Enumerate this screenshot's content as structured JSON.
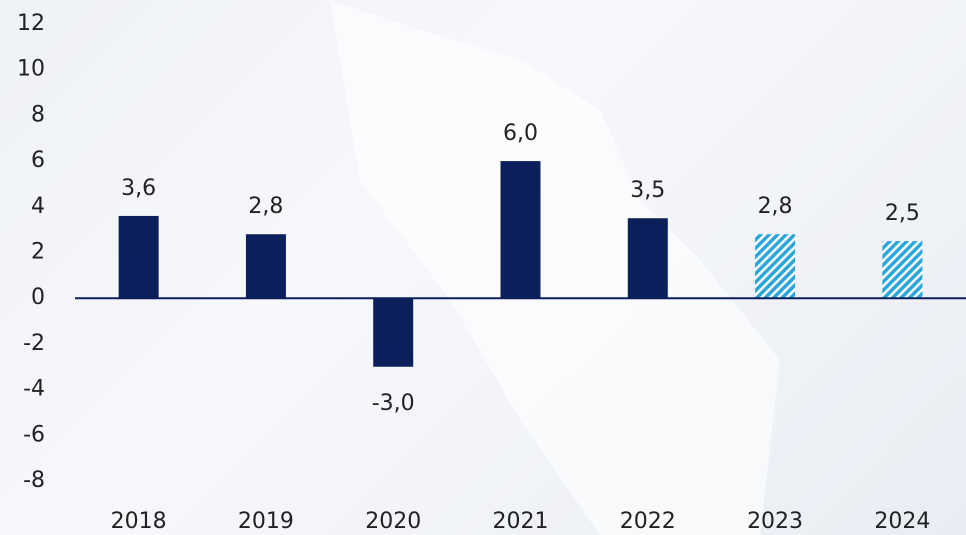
{
  "chart_data": {
    "type": "bar",
    "categories": [
      "2018",
      "2019",
      "2020",
      "2021",
      "2022",
      "2023",
      "2024"
    ],
    "values": [
      3.6,
      2.8,
      -3.0,
      6.0,
      3.5,
      2.8,
      2.5
    ],
    "value_labels": [
      "3,6",
      "2,8",
      "-3,0",
      "6,0",
      "3,5",
      "2,8",
      "2,5"
    ],
    "hatched": [
      false,
      false,
      false,
      false,
      false,
      true,
      true
    ],
    "color": "#0b1f5b",
    "hatch_color": "#2aa6dc",
    "ylim": [
      -8,
      12
    ],
    "yticks": [
      -8,
      -6,
      -4,
      -2,
      0,
      2,
      4,
      6,
      8,
      10,
      12
    ],
    "grid": false
  }
}
